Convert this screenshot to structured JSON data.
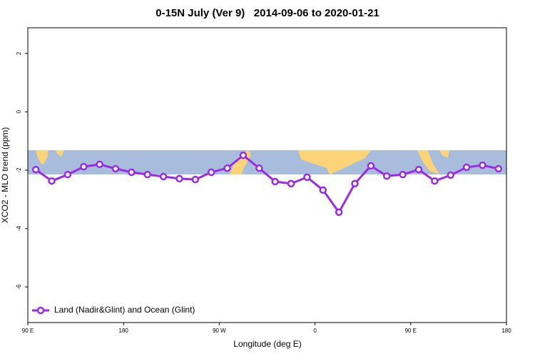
{
  "chart_data": {
    "type": "line",
    "title": "0-15N July (Ver 9)   2014-09-06 to 2020-01-21",
    "x_label": "Longitude (deg E)",
    "y_label": "XCO2 - MLO trend (ppm)",
    "x": [
      97.5,
      112.5,
      127.5,
      142.5,
      157.5,
      172.5,
      187.5,
      202.5,
      217.5,
      232.5,
      247.5,
      262.5,
      277.5,
      292.5,
      307.5,
      322.5,
      337.5,
      352.5,
      367.5,
      382.5,
      397.5,
      412.5,
      427.5,
      442.5,
      457.5,
      472.5,
      487.5,
      502.5,
      517.5,
      532.5
    ],
    "series": [
      {
        "name": "Land (Nadir&Glint) and Ocean (Glint)",
        "color": "#9a2be2",
        "values": [
          -1.98,
          -2.37,
          -2.15,
          -1.88,
          -1.8,
          -1.95,
          -2.07,
          -2.15,
          -2.22,
          -2.29,
          -2.32,
          -2.07,
          -1.93,
          -1.49,
          -1.93,
          -2.39,
          -2.46,
          -2.24,
          -2.68,
          -3.44,
          -2.46,
          -1.85,
          -2.2,
          -2.15,
          -1.98,
          -2.37,
          -2.17,
          -1.9,
          -1.83,
          -1.95
        ]
      }
    ],
    "xlim": [
      90,
      540
    ],
    "xticks": [
      {
        "value": 90,
        "label": "90 E"
      },
      180,
      {
        "value": 270,
        "label": "90 W"
      },
      {
        "value": 360,
        "label": "0"
      },
      {
        "value": 450,
        "label": "90 E"
      },
      {
        "value": 540,
        "label": "180"
      }
    ],
    "ylim": [
      -7.22,
      2.88
    ],
    "yticks": [
      -6,
      -4,
      -2,
      0,
      2
    ],
    "legend": "bottom-left"
  }
}
